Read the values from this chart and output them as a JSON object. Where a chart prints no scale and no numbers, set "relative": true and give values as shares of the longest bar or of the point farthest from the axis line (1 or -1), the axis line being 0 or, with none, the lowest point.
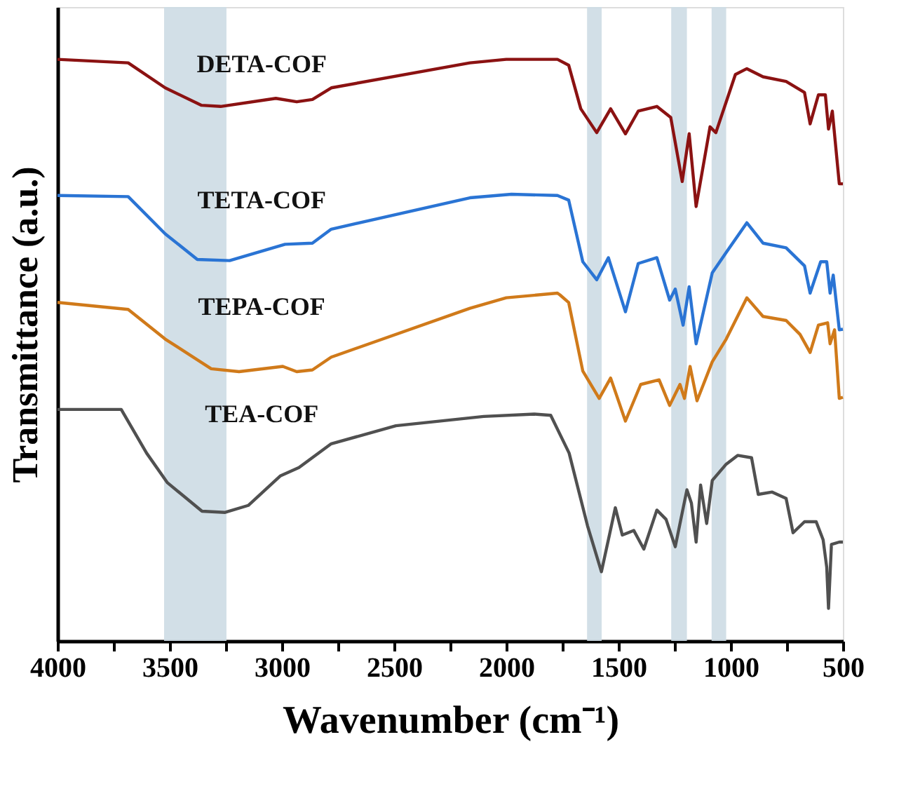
{
  "chart_data": {
    "type": "line",
    "relative": true,
    "xlabel": "Wavenumber (cm⁻¹)",
    "ylabel": "Transmittance (a.u.)",
    "xlim": [
      4000,
      500
    ],
    "xticks": [
      4000,
      {
        "value": 3750,
        "label": null
      },
      3500,
      {
        "value": 3250,
        "label": null
      },
      3000,
      {
        "value": 2750,
        "label": null
      },
      2500,
      {
        "value": 2250,
        "label": null
      },
      2000,
      {
        "value": 1750,
        "label": null
      },
      1500,
      {
        "value": 1250,
        "label": null
      },
      1000,
      {
        "value": 750,
        "label": null
      },
      500
    ],
    "grid": false,
    "legend": false,
    "marker": "none",
    "line_style": "solid",
    "tick_labels": "x",
    "bands": [
      {
        "axis": "x",
        "from": 3525,
        "to": 3247,
        "color": "#cddce4"
      },
      {
        "axis": "x",
        "from": 1640,
        "to": 1575,
        "color": "#cddce4"
      },
      {
        "axis": "x",
        "from": 1265,
        "to": 1195,
        "color": "#cddce4"
      },
      {
        "axis": "x",
        "from": 1085,
        "to": 1020,
        "color": "#cddce4"
      }
    ],
    "series": [
      {
        "name": "DETA-COF",
        "color": "#8b1212",
        "x": [
          4000,
          3685,
          3520,
          3358,
          3273,
          3027,
          2934,
          2864,
          2780,
          2162,
          2000,
          1772,
          1722,
          1668,
          1597,
          1535,
          1469,
          1412,
          1329,
          1267,
          1216,
          1185,
          1154,
          1092,
          1066,
          979,
          928,
          856,
          753,
          671,
          646,
          609,
          578,
          564,
          547,
          516,
          500
        ],
        "values": [
          1,
          0.994,
          0.951,
          0.921,
          0.919,
          0.933,
          0.927,
          0.931,
          0.951,
          0.994,
          1,
          1,
          0.99,
          0.915,
          0.874,
          0.915,
          0.872,
          0.911,
          0.919,
          0.9,
          0.79,
          0.872,
          0.747,
          0.884,
          0.874,
          0.974,
          0.984,
          0.97,
          0.962,
          0.943,
          0.889,
          0.939,
          0.939,
          0.88,
          0.911,
          0.786,
          0.786
        ]
      },
      {
        "name": "TETA-COF",
        "color": "#2a74d4",
        "x": [
          4000,
          3685,
          3520,
          3377,
          3233,
          2986,
          2864,
          2780,
          2162,
          1977,
          1772,
          1722,
          1659,
          1597,
          1545,
          1469,
          1412,
          1329,
          1272,
          1247,
          1212,
          1185,
          1154,
          1082,
          1020,
          928,
          856,
          753,
          671,
          646,
          599,
          572,
          557,
          543,
          516,
          500
        ],
        "values": [
          0.766,
          0.764,
          0.7,
          0.656,
          0.654,
          0.682,
          0.684,
          0.708,
          0.762,
          0.768,
          0.766,
          0.758,
          0.652,
          0.621,
          0.659,
          0.566,
          0.649,
          0.659,
          0.586,
          0.605,
          0.543,
          0.609,
          0.511,
          0.633,
          0.668,
          0.719,
          0.684,
          0.676,
          0.645,
          0.598,
          0.652,
          0.652,
          0.598,
          0.629,
          0.535,
          0.536
        ]
      },
      {
        "name": "TEPA-COF",
        "color": "#d07a1a",
        "x": [
          4000,
          3685,
          3520,
          3315,
          3191,
          2996,
          2934,
          2864,
          2780,
          2162,
          2000,
          1772,
          1761,
          1722,
          1659,
          1586,
          1535,
          1469,
          1401,
          1319,
          1272,
          1226,
          1206,
          1181,
          1150,
          1082,
          1020,
          928,
          856,
          753,
          691,
          646,
          609,
          568,
          557,
          537,
          516,
          500
        ],
        "values": [
          0.582,
          0.57,
          0.519,
          0.468,
          0.463,
          0.472,
          0.463,
          0.466,
          0.488,
          0.572,
          0.59,
          0.598,
          0.595,
          0.582,
          0.464,
          0.417,
          0.452,
          0.378,
          0.441,
          0.449,
          0.405,
          0.441,
          0.417,
          0.472,
          0.413,
          0.48,
          0.519,
          0.59,
          0.558,
          0.551,
          0.527,
          0.496,
          0.543,
          0.547,
          0.511,
          0.535,
          0.417,
          0.419
        ]
      },
      {
        "name": "TEA-COF",
        "color": "#505050",
        "x": [
          4000,
          3716,
          3603,
          3510,
          3356,
          3253,
          3150,
          3006,
          2924,
          2780,
          2492,
          2101,
          1875,
          1802,
          1720,
          1638,
          1576,
          1514,
          1483,
          1432,
          1387,
          1329,
          1288,
          1247,
          1195,
          1175,
          1154,
          1134,
          1107,
          1082,
          1020,
          969,
          907,
          877,
          815,
          753,
          722,
          671,
          619,
          588,
          572,
          564,
          551,
          516,
          500
        ],
        "values": [
          0.398,
          0.398,
          0.323,
          0.272,
          0.223,
          0.221,
          0.233,
          0.284,
          0.298,
          0.339,
          0.37,
          0.386,
          0.39,
          0.388,
          0.323,
          0.198,
          0.119,
          0.229,
          0.182,
          0.19,
          0.158,
          0.225,
          0.209,
          0.162,
          0.26,
          0.237,
          0.17,
          0.268,
          0.202,
          0.276,
          0.304,
          0.319,
          0.315,
          0.252,
          0.256,
          0.245,
          0.186,
          0.205,
          0.205,
          0.174,
          0.127,
          0.056,
          0.166,
          0.17,
          0.17
        ]
      }
    ]
  }
}
